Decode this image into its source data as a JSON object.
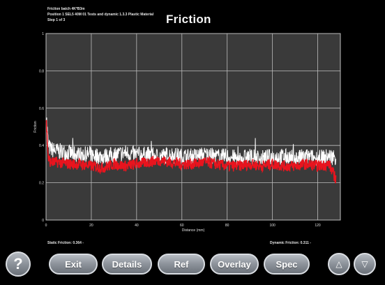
{
  "header": {
    "line1": "Friction batch 4K*B3m",
    "line2": "Position 1 SEL5 40M 01 Tests and dynamic 1.3.3 Plastic Material",
    "line3": "Step 1 of 3",
    "title": "Friction"
  },
  "footer": {
    "static_friction": "Static Friction: 0.364 -",
    "dynamic_friction": "Dynamic Friction: 0.311 -"
  },
  "buttons": {
    "help": "?",
    "exit": "Exit",
    "details": "Details",
    "ref": "Ref",
    "overlay": "Overlay",
    "spec": "Spec",
    "up": "△",
    "down": "▽"
  },
  "colors": {
    "plot_bg": "#3a3a3a",
    "grid": "#bdbdbd",
    "white_series": "#ffffff",
    "red_series": "#e8141e"
  },
  "chart_data": {
    "type": "line",
    "title": "Friction",
    "xlabel": "Distance (mm)",
    "ylabel": "Friction",
    "xlim": [
      0,
      130
    ],
    "ylim": [
      0,
      1
    ],
    "x_ticks": [
      "0",
      "20",
      "40",
      "60",
      "80",
      "100",
      "120"
    ],
    "y_ticks": [
      "0",
      "0.2",
      "0.4",
      "0.6",
      "0.8",
      "1"
    ],
    "grid": true,
    "series": [
      {
        "color": "#ffffff",
        "x": [
          0,
          1,
          2,
          5,
          10,
          15,
          20,
          25,
          30,
          35,
          40,
          45,
          50,
          55,
          60,
          65,
          70,
          75,
          80,
          85,
          90,
          95,
          100,
          105,
          110,
          115,
          120,
          125,
          128
        ],
        "values": [
          0.58,
          0.4,
          0.38,
          0.37,
          0.36,
          0.35,
          0.35,
          0.34,
          0.35,
          0.36,
          0.35,
          0.35,
          0.34,
          0.35,
          0.34,
          0.34,
          0.35,
          0.34,
          0.34,
          0.33,
          0.34,
          0.33,
          0.34,
          0.34,
          0.33,
          0.34,
          0.33,
          0.34,
          0.34
        ]
      },
      {
        "color": "#e8141e",
        "x": [
          0,
          1,
          2,
          5,
          10,
          15,
          20,
          25,
          30,
          35,
          40,
          45,
          50,
          55,
          60,
          65,
          70,
          75,
          80,
          85,
          90,
          95,
          100,
          105,
          110,
          115,
          120,
          125,
          128
        ],
        "values": [
          0.55,
          0.33,
          0.31,
          0.31,
          0.3,
          0.3,
          0.29,
          0.28,
          0.3,
          0.29,
          0.3,
          0.31,
          0.32,
          0.31,
          0.3,
          0.3,
          0.31,
          0.3,
          0.29,
          0.29,
          0.3,
          0.29,
          0.3,
          0.29,
          0.29,
          0.3,
          0.29,
          0.3,
          0.22
        ]
      }
    ]
  }
}
